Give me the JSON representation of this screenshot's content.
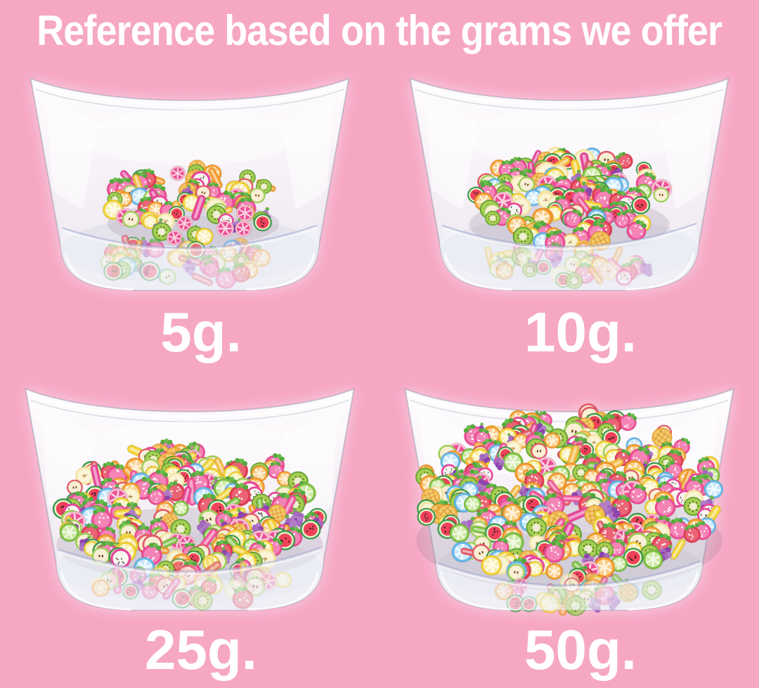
{
  "title": "Reference based on the grams we offer",
  "background_color": "#F6A7C4",
  "text_color": "#FFFFFF",
  "container": "clear square plastic bowl",
  "contents": "assorted fruit polymer clay slices",
  "fruit_types": [
    "strawberry",
    "orange",
    "lemon",
    "lime",
    "watermelon",
    "kiwi",
    "grape",
    "apple",
    "dragon-fruit",
    "pineapple",
    "blue-orange",
    "grapefruit",
    "banana"
  ],
  "bowls": [
    {
      "label": "5g.",
      "grams": 5,
      "fill_level": "small pile at bottom"
    },
    {
      "label": "10g.",
      "grams": 10,
      "fill_level": "medium pile at bottom"
    },
    {
      "label": "25g.",
      "grams": 25,
      "fill_level": "pile covering bowl floor"
    },
    {
      "label": "50g.",
      "grams": 50,
      "fill_level": "bowl nearly full"
    }
  ]
}
